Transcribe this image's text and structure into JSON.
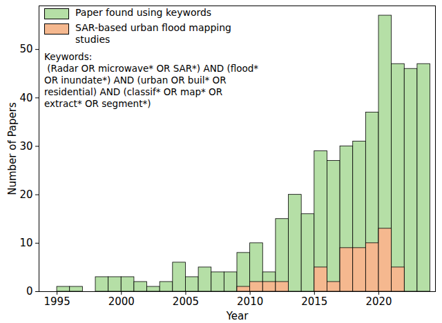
{
  "chart_data": {
    "type": "histogram",
    "xlabel": "Year",
    "ylabel": "Number of Papers",
    "bins": [
      1995,
      1996,
      1997,
      1998,
      1999,
      2000,
      2001,
      2002,
      2003,
      2004,
      2005,
      2006,
      2007,
      2008,
      2009,
      2010,
      2011,
      2012,
      2013,
      2014,
      2015,
      2016,
      2017,
      2018,
      2019,
      2020,
      2021,
      2022,
      2023,
      2024
    ],
    "series": [
      {
        "name": "Paper found using keywords",
        "color": "#b5dfa6",
        "values": [
          1,
          1,
          0,
          3,
          3,
          3,
          2,
          1,
          2,
          6,
          3,
          5,
          4,
          4,
          8,
          10,
          4,
          15,
          20,
          16,
          29,
          27,
          30,
          31,
          37,
          57,
          47,
          46,
          47
        ]
      },
      {
        "name": "SAR-based urban flood mapping\nstudies",
        "color": "#f5b88f",
        "values": [
          0,
          0,
          0,
          0,
          0,
          0,
          0,
          0,
          0,
          0,
          0,
          0,
          0,
          0,
          1,
          2,
          2,
          2,
          0,
          0,
          5,
          2,
          9,
          9,
          10,
          13,
          5,
          0,
          0
        ]
      }
    ],
    "annotations": [
      "Keywords:\n (Radar OR microwave* OR SAR*) AND (flood*\nOR inundate*) AND (urban OR buil* OR\nresidential) AND (classif* OR map* OR\nextract* OR segment*)"
    ],
    "xlim": [
      1993.6,
      2024.4
    ],
    "xticks": [
      1995,
      2000,
      2005,
      2010,
      2015,
      2020
    ],
    "ylim": [
      0,
      59
    ],
    "yticks": [
      0,
      10,
      20,
      30,
      40,
      50
    ],
    "stacked": false,
    "grid": false,
    "legend": "upper left"
  }
}
